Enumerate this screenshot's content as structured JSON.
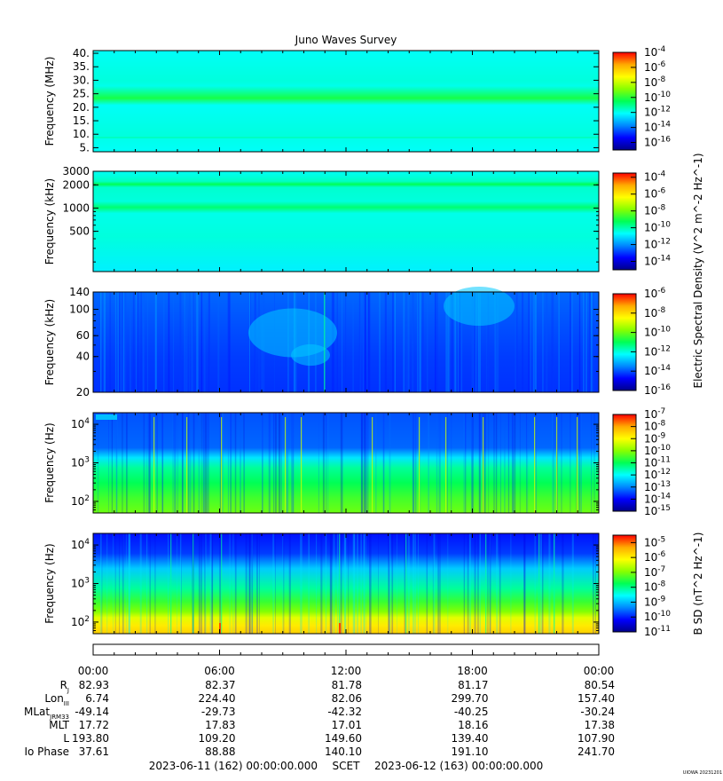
{
  "title": "Juno Waves Survey",
  "watermark": "UIOWA 20231201",
  "colorbar_shared_label": "Electric Spectral Density (V^2 m^-2 Hz^-1)",
  "colormap": [
    "#00008b",
    "#0000ff",
    "#0088ff",
    "#00ffff",
    "#00ff55",
    "#88ff00",
    "#ffff00",
    "#ffaa00",
    "#ff0000"
  ],
  "chart_data": [
    {
      "type": "heatmap",
      "panel": "hfwbr-mhz",
      "ylabel": "Frequency (MHz)",
      "yscale": "linear",
      "ylim": [
        3.5,
        41
      ],
      "yticks": [
        5,
        10,
        15,
        20,
        25,
        30,
        35,
        40
      ],
      "ytick_labels": [
        "5.",
        "10.",
        "15.",
        "20.",
        "25.",
        "30.",
        "35.",
        "40."
      ],
      "colorbar": {
        "range_exp": [
          -17,
          -4
        ],
        "labels": [
          "10^-4",
          "10^-6",
          "10^-8",
          "10^-10",
          "10^-12",
          "10^-14",
          "10^-16"
        ],
        "label": ""
      },
      "bands": [
        {
          "y": 21,
          "note": "enhanced emission band"
        }
      ]
    },
    {
      "type": "heatmap",
      "panel": "hfwbr-khz",
      "ylabel": "Frequency (kHz)",
      "yscale": "log",
      "ylim": [
        150,
        3000
      ],
      "yticks": [
        500,
        1000,
        2000,
        3000
      ],
      "ytick_labels": [
        "500",
        "1000",
        "2000",
        "3000"
      ],
      "colorbar": {
        "range_exp": [
          -15,
          -3.5
        ],
        "labels": [
          "10^-4",
          "10^-6",
          "10^-8",
          "10^-10",
          "10^-12",
          "10^-14"
        ],
        "label": ""
      },
      "bands": [
        {
          "y": 2000
        },
        {
          "y": 1000
        }
      ]
    },
    {
      "type": "heatmap",
      "panel": "lfr-high",
      "ylabel": "Frequency (kHz)",
      "yscale": "log",
      "ylim": [
        20,
        140
      ],
      "yticks": [
        20,
        40,
        60,
        100,
        140
      ],
      "ytick_labels": [
        "20",
        "40",
        "60",
        "100",
        "140"
      ],
      "colorbar": {
        "range_exp": [
          -16,
          -6
        ],
        "labels": [
          "10^-6",
          "10^-8",
          "10^-10",
          "10^-12",
          "10^-14",
          "10^-16"
        ],
        "label": "Electric Spectral Density (V^2 m^-2 Hz^-1)"
      }
    },
    {
      "type": "heatmap",
      "panel": "lfr-low",
      "ylabel": "Frequency (Hz)",
      "yscale": "log",
      "ylim": [
        50,
        20000
      ],
      "yticks": [
        100,
        1000,
        10000
      ],
      "ytick_labels": [
        "10^2",
        "10^3",
        "10^4"
      ],
      "colorbar": {
        "range_exp": [
          -15,
          -7
        ],
        "labels": [
          "10^-7",
          "10^-8",
          "10^-9",
          "10^-10",
          "10^-11",
          "10^-12",
          "10^-13",
          "10^-14",
          "10^-15"
        ],
        "label": ""
      }
    },
    {
      "type": "heatmap",
      "panel": "magnetic",
      "ylabel": "Frequency (Hz)",
      "yscale": "log",
      "ylim": [
        50,
        20000
      ],
      "yticks": [
        100,
        1000,
        10000
      ],
      "ytick_labels": [
        "10^2",
        "10^3",
        "10^4"
      ],
      "colorbar": {
        "range_exp": [
          -11,
          -4.5
        ],
        "labels": [
          "10^-5",
          "10^-6",
          "10^-7",
          "10^-8",
          "10^-9",
          "10^-10",
          "10^-11"
        ],
        "label": "B SD (nT^2 Hz^-1)"
      }
    }
  ],
  "x_axis": {
    "range_hours": [
      0,
      24
    ],
    "tick_labels": [
      "00:00",
      "06:00",
      "12:00",
      "18:00",
      "00:00"
    ],
    "scet_start": "2023-06-11 (162) 00:00:00.000",
    "scet_label": "SCET",
    "scet_end": "2023-06-12 (163) 00:00:00.000"
  },
  "ephemeris": [
    {
      "label": "R",
      "sub": "J",
      "values": [
        "82.93",
        "82.37",
        "81.78",
        "81.17",
        "80.54"
      ]
    },
    {
      "label": "Lon",
      "sub": "III",
      "values": [
        "6.74",
        "224.40",
        "82.06",
        "299.70",
        "157.40"
      ]
    },
    {
      "label": "MLat",
      "sub": "JRM33",
      "values": [
        "-49.14",
        "-29.73",
        "-42.32",
        "-40.25",
        "-30.24"
      ]
    },
    {
      "label": "MLT",
      "sub": "",
      "values": [
        "17.72",
        "17.83",
        "17.01",
        "18.16",
        "17.38"
      ]
    },
    {
      "label": "L",
      "sub": "",
      "values": [
        "193.80",
        "109.20",
        "149.60",
        "139.40",
        "107.90"
      ]
    },
    {
      "label": "Io Phase",
      "sub": "",
      "values": [
        "37.61",
        "88.88",
        "140.10",
        "191.10",
        "241.70"
      ]
    }
  ]
}
